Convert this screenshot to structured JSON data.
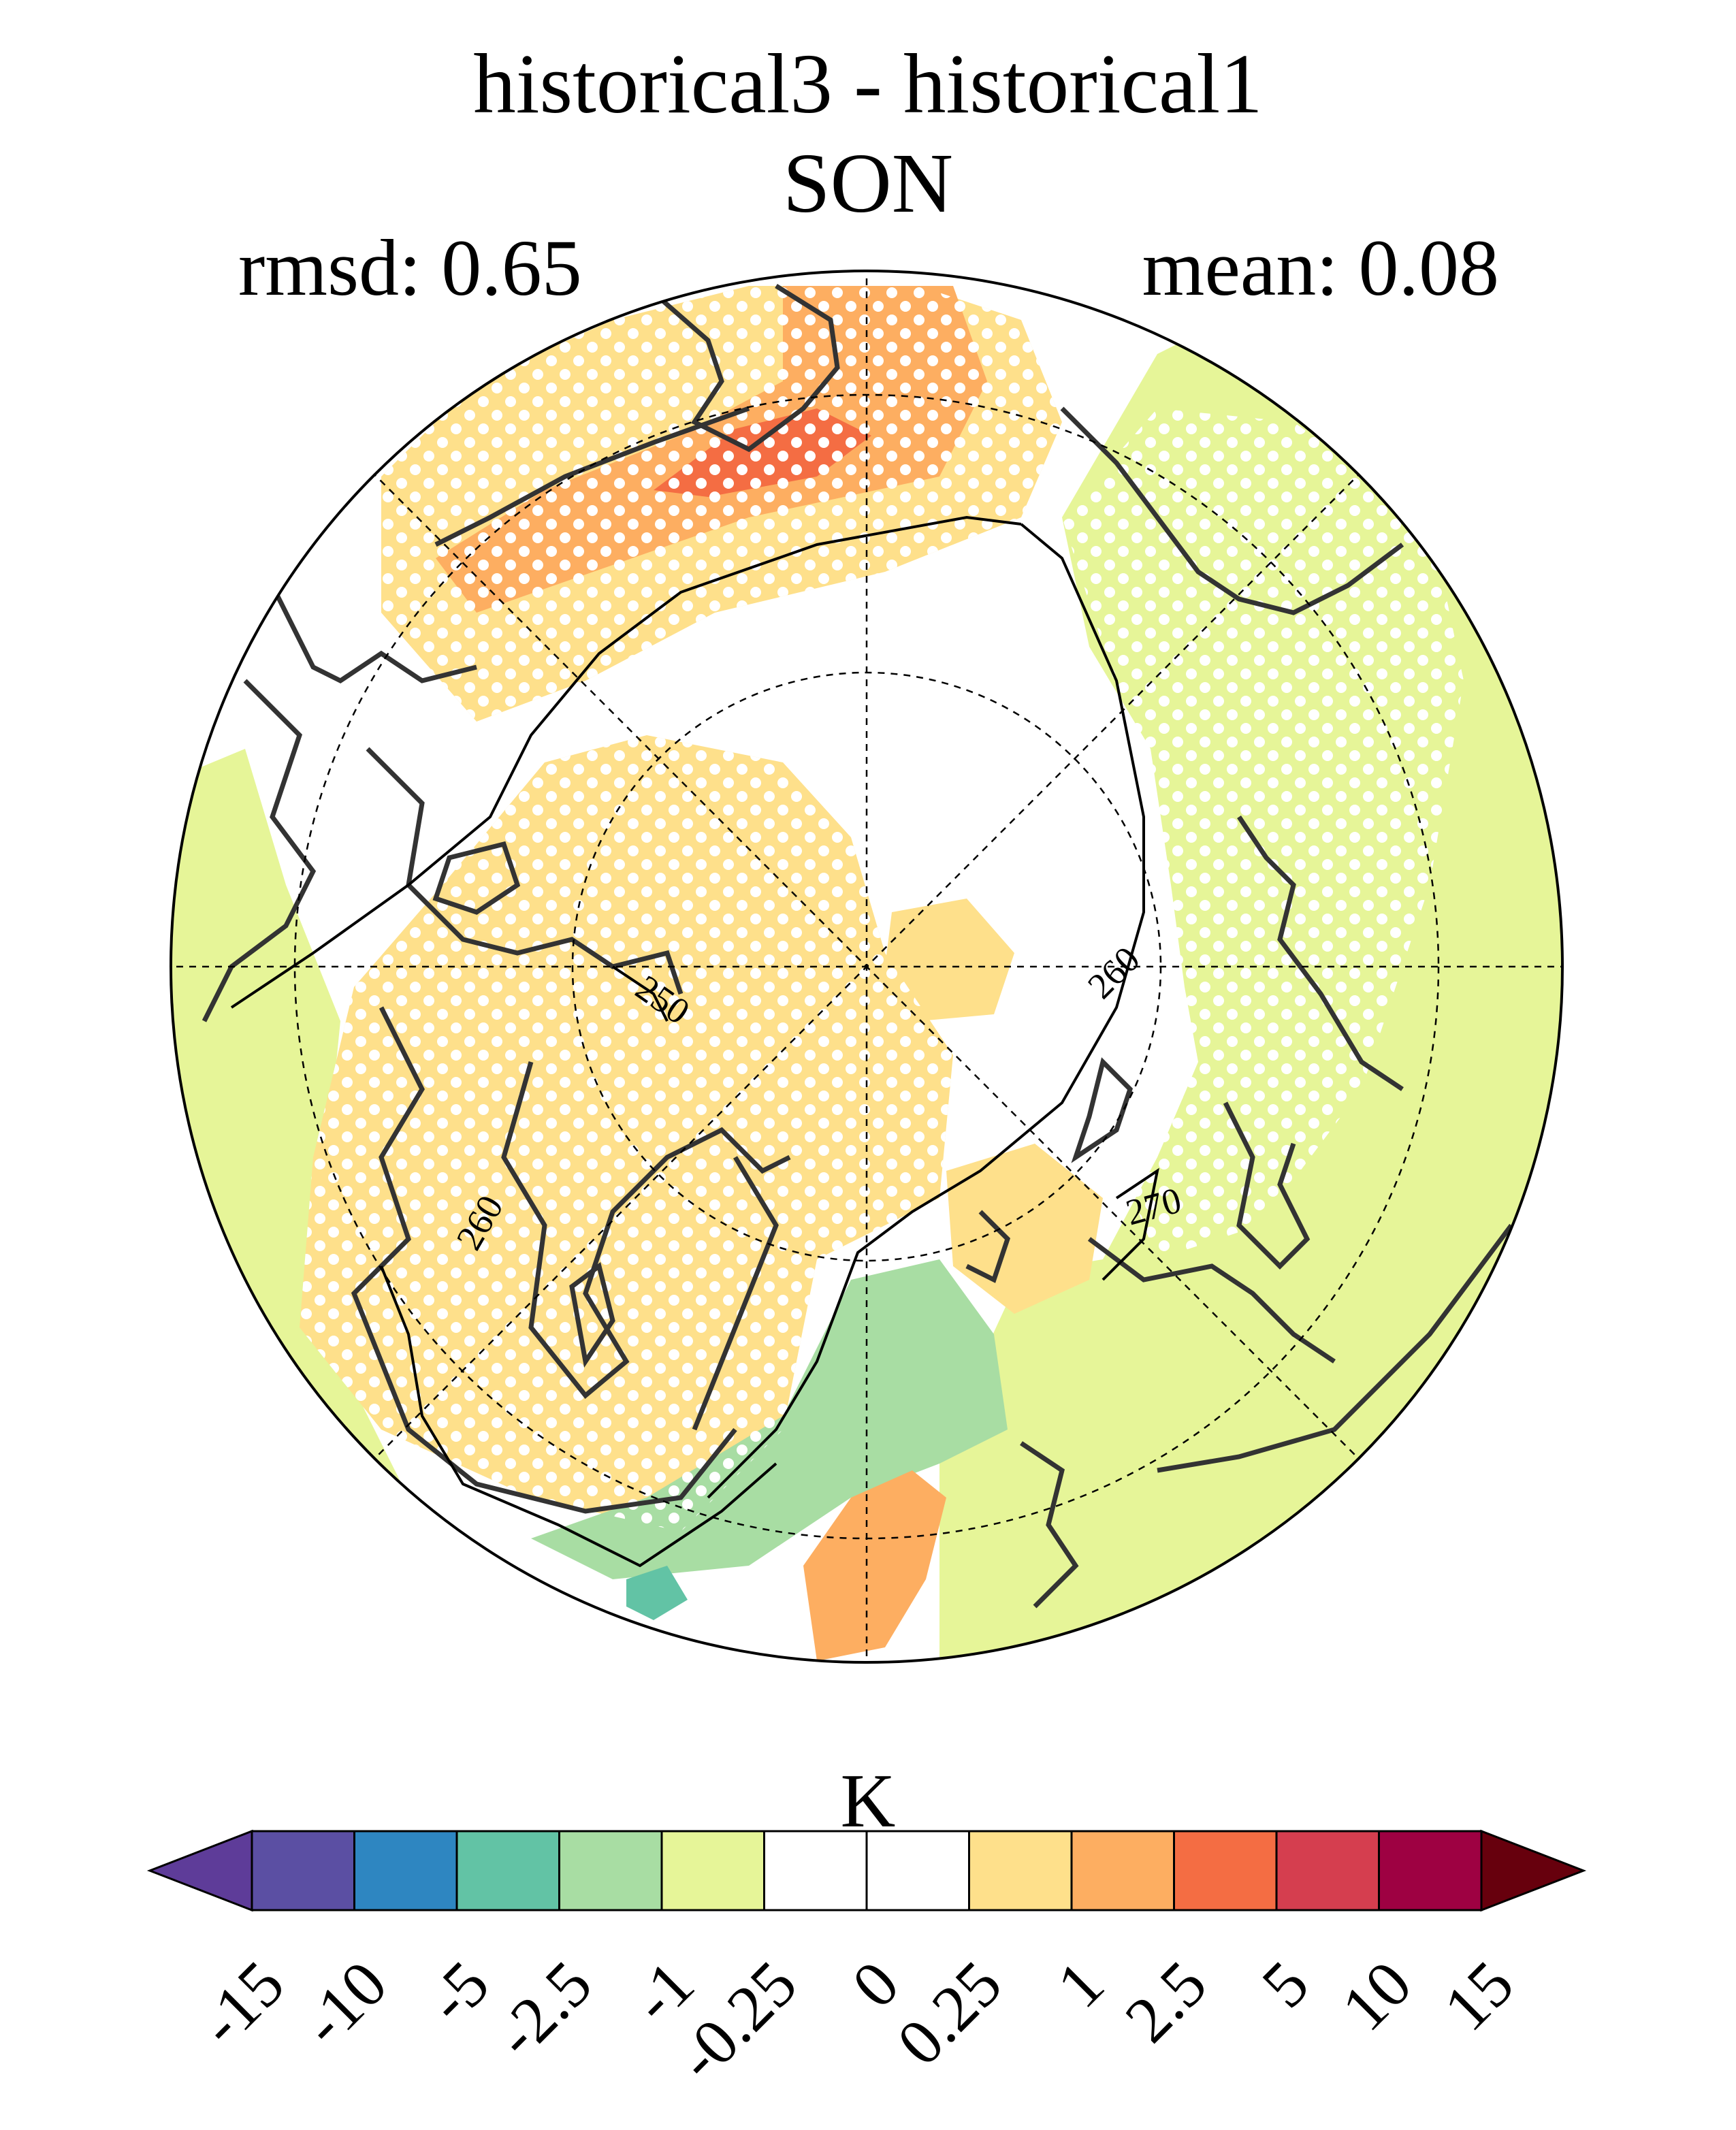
{
  "header": {
    "title": "historical3 - historical1",
    "subtitle": "SON",
    "rmsd_text": "rmsd: 0.65",
    "mean_text": "mean: 0.08"
  },
  "map": {
    "projection": "north-polar-stereographic",
    "contour_labels": [
      "250",
      "260",
      "260",
      "270"
    ],
    "stipple": "white-dots-significance"
  },
  "colorbar": {
    "unit": "K",
    "tick_labels": [
      "-15",
      "-10",
      "-5",
      "-2.5",
      "-1",
      "-0.25",
      "0",
      "0.25",
      "1",
      "2.5",
      "5",
      "10",
      "15"
    ],
    "colors": [
      "#5e3c99",
      "#5b4fa3",
      "#2e86c1",
      "#62c3a5",
      "#a8dda3",
      "#e6f598",
      "#ffffff",
      "#ffffff",
      "#fee08b",
      "#fdae61",
      "#f46d43",
      "#d53e4f",
      "#9e0142",
      "#67000d"
    ]
  }
}
